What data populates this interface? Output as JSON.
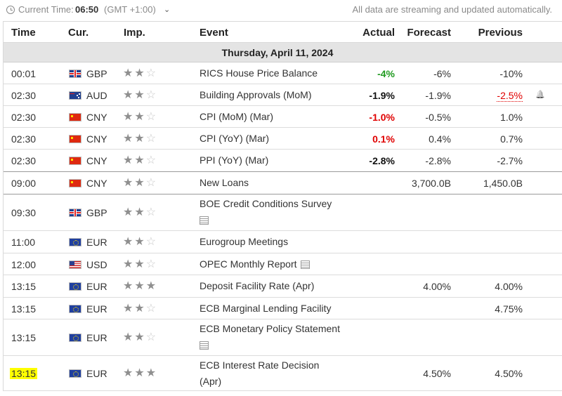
{
  "topbar": {
    "current_time_label": "Current Time:",
    "current_time": "06:50",
    "timezone": "(GMT +1:00)",
    "timezone_caret": "⌄",
    "streaming_notice": "All data are streaming and updated automatically."
  },
  "columns": {
    "time": "Time",
    "currency": "Cur.",
    "importance": "Imp.",
    "event": "Event",
    "actual": "Actual",
    "forecast": "Forecast",
    "previous": "Previous"
  },
  "date_header": "Thursday, April 11, 2024",
  "events": [
    {
      "time": "00:01",
      "currency": "GBP",
      "flag": "gb",
      "importance": 2,
      "event": "RICS House Price Balance",
      "actual": "-4%",
      "actual_color": "#1f9a1f",
      "forecast": "-6%",
      "previous": "-10%"
    },
    {
      "time": "02:30",
      "currency": "AUD",
      "flag": "au",
      "importance": 2,
      "event": "Building Approvals (MoM)",
      "actual": "-1.9%",
      "actual_color": "#111111",
      "forecast": "-1.9%",
      "previous": "-2.5%",
      "previous_color": "#e00000",
      "alert_icon": "bell-plus-icon"
    },
    {
      "time": "02:30",
      "currency": "CNY",
      "flag": "cn",
      "importance": 2,
      "event": "CPI (MoM) (Mar)",
      "actual": "-1.0%",
      "actual_color": "#e00000",
      "forecast": "-0.5%",
      "previous": "1.0%"
    },
    {
      "time": "02:30",
      "currency": "CNY",
      "flag": "cn",
      "importance": 2,
      "event": "CPI (YoY) (Mar)",
      "actual": "0.1%",
      "actual_color": "#e00000",
      "forecast": "0.4%",
      "previous": "0.7%"
    },
    {
      "time": "02:30",
      "currency": "CNY",
      "flag": "cn",
      "importance": 2,
      "event": "PPI (YoY) (Mar)",
      "actual": "-2.8%",
      "actual_color": "#111111",
      "forecast": "-2.8%",
      "previous": "-2.7%"
    },
    {
      "time": "09:00",
      "currency": "CNY",
      "flag": "cn",
      "importance": 2,
      "event": "New Loans",
      "actual": "",
      "forecast": "3,700.0B",
      "previous": "1,450.0B"
    },
    {
      "time": "09:30",
      "currency": "GBP",
      "flag": "gb",
      "importance": 2,
      "event": "BOE Credit Conditions Survey",
      "actual": "",
      "forecast": "",
      "previous": "",
      "doc_icon": "document-icon"
    },
    {
      "time": "11:00",
      "currency": "EUR",
      "flag": "eu",
      "importance": 2,
      "event": "Eurogroup Meetings",
      "actual": "",
      "forecast": "",
      "previous": ""
    },
    {
      "time": "12:00",
      "currency": "USD",
      "flag": "us",
      "importance": 2,
      "event": "OPEC Monthly Report",
      "actual": "",
      "forecast": "",
      "previous": "",
      "doc_icon": "document-icon"
    },
    {
      "time": "13:15",
      "currency": "EUR",
      "flag": "eu",
      "importance": 3,
      "event": "Deposit Facility Rate (Apr)",
      "actual": "",
      "forecast": "4.00%",
      "previous": "4.00%"
    },
    {
      "time": "13:15",
      "currency": "EUR",
      "flag": "eu",
      "importance": 2,
      "event": "ECB Marginal Lending Facility",
      "actual": "",
      "forecast": "",
      "previous": "4.75%"
    },
    {
      "time": "13:15",
      "currency": "EUR",
      "flag": "eu",
      "importance": 2,
      "event": "ECB Monetary Policy Statement",
      "actual": "",
      "forecast": "",
      "previous": "",
      "doc_icon": "document-icon"
    },
    {
      "time": "13:15",
      "currency": "EUR",
      "flag": "eu",
      "importance": 3,
      "event": "ECB Interest Rate Decision (Apr)",
      "actual": "",
      "forecast": "4.50%",
      "previous": "4.50%",
      "time_highlight": "#ffff00"
    }
  ]
}
